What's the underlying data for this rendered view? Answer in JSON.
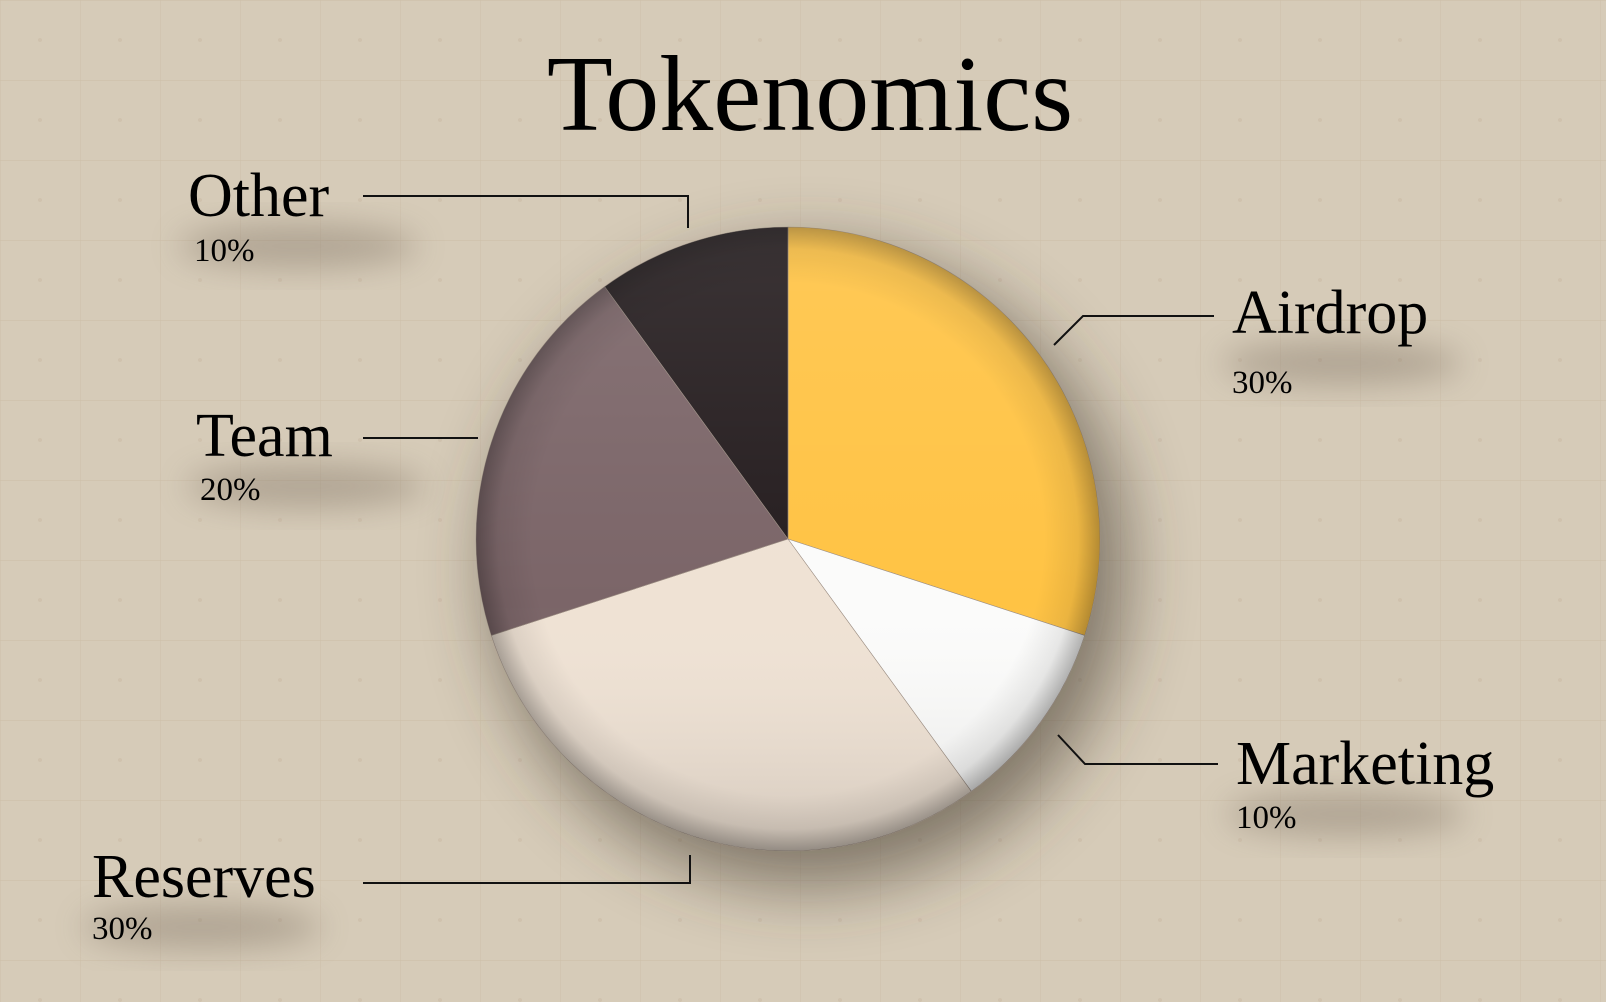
{
  "chart_data": {
    "type": "pie",
    "title": "Tokenomics",
    "start_angle_deg": 0,
    "direction": "clockwise",
    "slices": [
      {
        "label": "Airdrop",
        "value": 30,
        "pct_label": "30%",
        "color": "#ffc344"
      },
      {
        "label": "Marketing",
        "value": 10,
        "pct_label": "10%",
        "color": "#fbfbfa"
      },
      {
        "label": "Reserves",
        "value": 30,
        "pct_label": "30%",
        "color": "#efe2d4"
      },
      {
        "label": "Team",
        "value": 20,
        "pct_label": "20%",
        "color": "#7b6568"
      },
      {
        "label": "Other",
        "value": 10,
        "pct_label": "10%",
        "color": "#251d1f"
      }
    ]
  },
  "colors": {
    "background": "#d6cbb8",
    "background_accent": "#cdbfa9",
    "leader_line": "#111111"
  }
}
